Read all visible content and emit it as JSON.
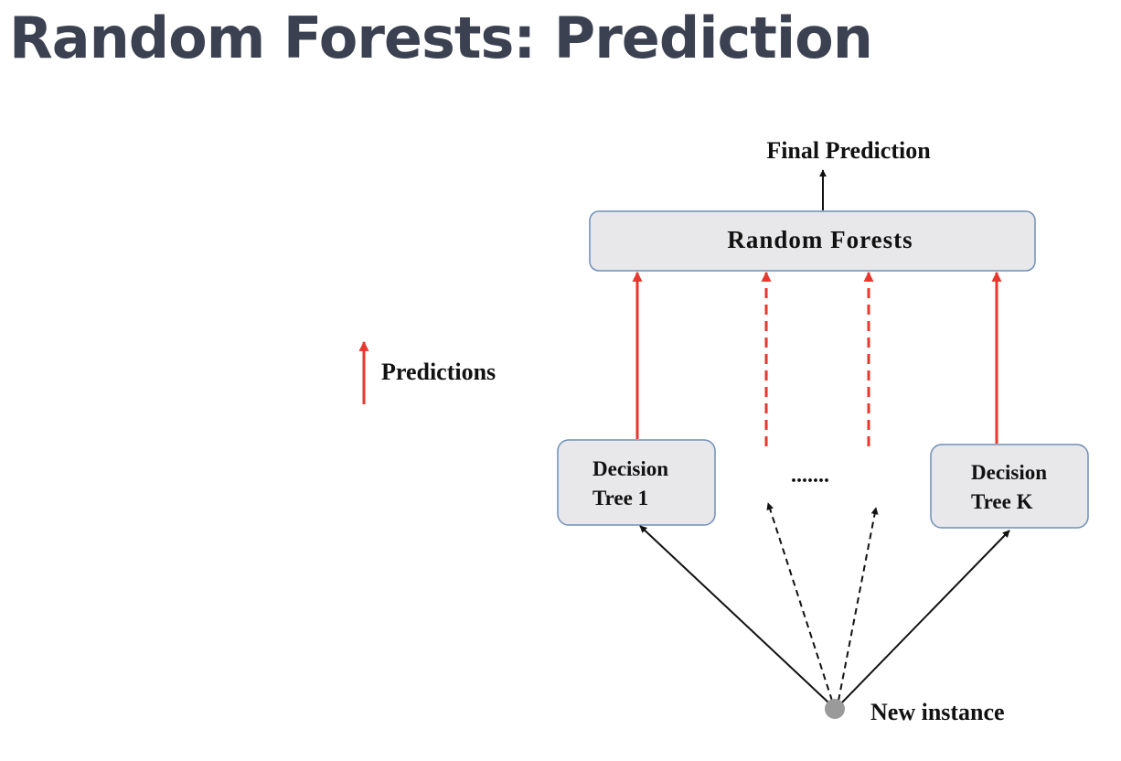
{
  "title": "Random Forests: Prediction",
  "diagram": {
    "output_label": "Final Prediction",
    "aggregator_label": "Random Forests",
    "legend_label": "Predictions",
    "trees": [
      {
        "line1": "Decision",
        "line2": "Tree 1"
      },
      {
        "line1": "Decision",
        "line2": "Tree K"
      }
    ],
    "ellipsis": ".......",
    "input_label": "New instance"
  },
  "colors": {
    "title": "#3b4151",
    "box_fill": "#e8e8ea",
    "box_border": "#6f8fb8",
    "prediction_arrow": "#e8372d",
    "input_arrow": "#111111",
    "instance_dot": "#9a9a9a"
  }
}
